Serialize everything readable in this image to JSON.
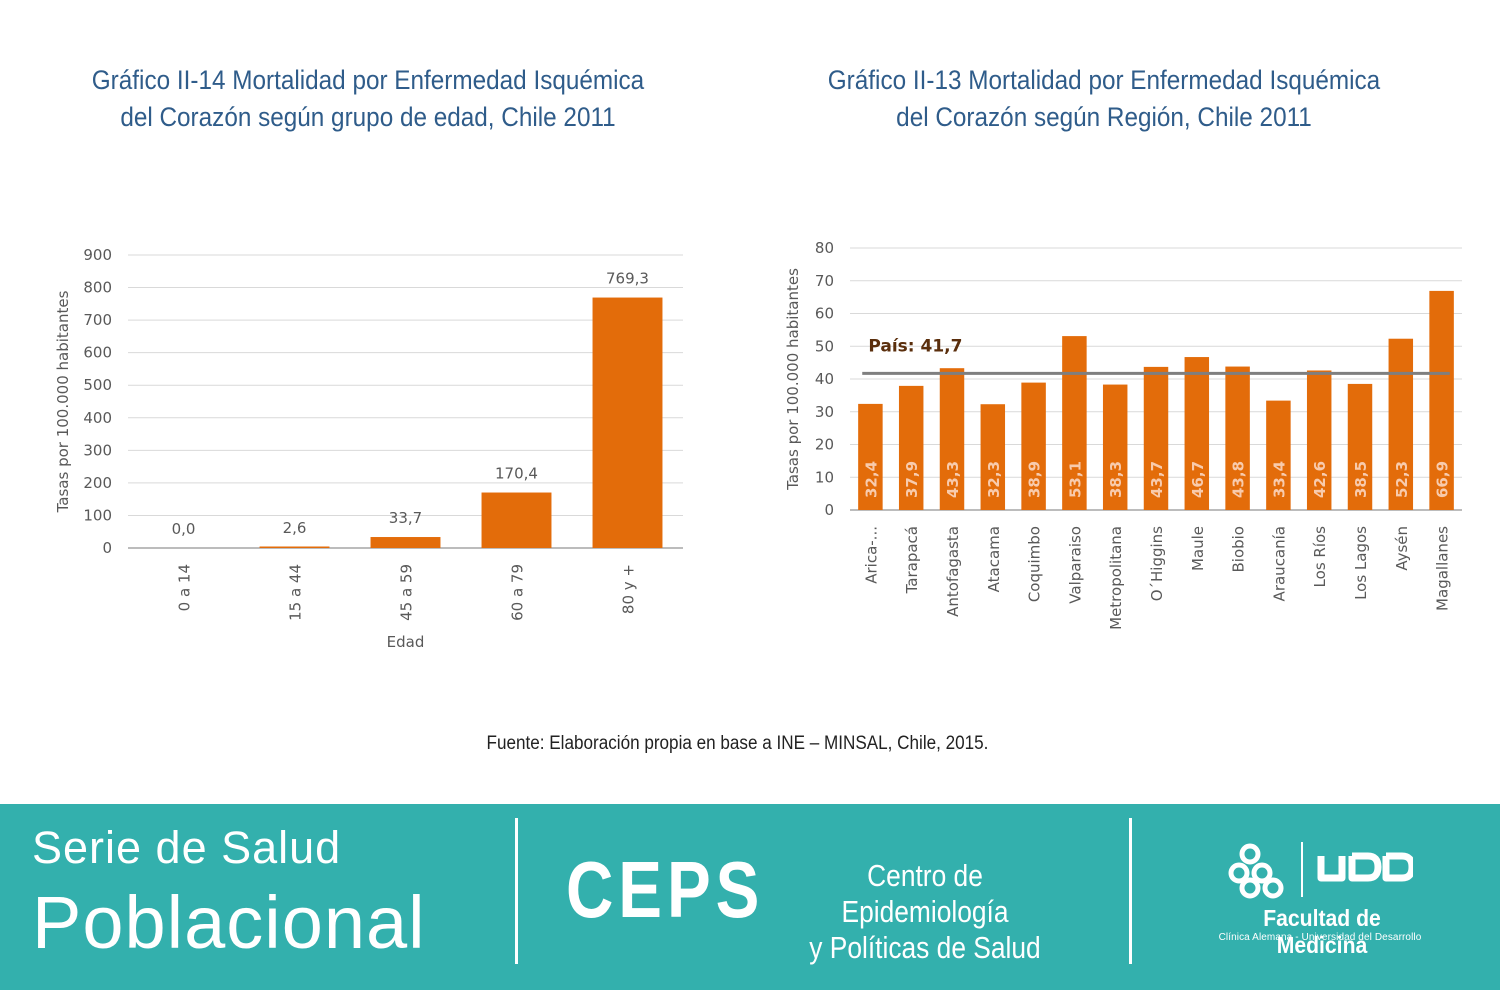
{
  "chart_data": [
    {
      "type": "bar",
      "title_lines": [
        "Gráfico II-14 Mortalidad por Enfermedad Isquémica",
        "del Corazón según grupo de edad, Chile 2011"
      ],
      "xlabel": "Edad",
      "ylabel": "Tasas por 100.000 habitantes",
      "ylim": [
        0,
        900
      ],
      "yticks": [
        0,
        100,
        200,
        300,
        400,
        500,
        600,
        700,
        800,
        900
      ],
      "grid": true,
      "categories": [
        "0 a 14",
        "15 a 44",
        "45 a 59",
        "60 a 79",
        "80 y +"
      ],
      "values": [
        0.0,
        2.6,
        33.7,
        170.4,
        769.3
      ],
      "data_labels": [
        "0,0",
        "2,6",
        "33,7",
        "170,4",
        "769,3"
      ],
      "bar_color": "#e36c0a"
    },
    {
      "type": "bar",
      "title_lines": [
        "Gráfico II-13 Mortalidad por Enfermedad Isquémica",
        "del Corazón según Región, Chile 2011"
      ],
      "xlabel": "",
      "ylabel": "Tasas por 100.000 habitantes",
      "ylim": [
        0,
        80
      ],
      "yticks": [
        0,
        10,
        20,
        30,
        40,
        50,
        60,
        70,
        80
      ],
      "grid": true,
      "categories": [
        "Arica-...",
        "Tarapacá",
        "Antofagasta",
        "Atacama",
        "Coquimbo",
        "Valparaiso",
        "Metropolitana",
        "O´Higgins",
        "Maule",
        "Biobio",
        "Araucanía",
        "Los Ríos",
        "Los Lagos",
        "Aysén",
        "Magallanes"
      ],
      "values": [
        32.4,
        37.9,
        43.3,
        32.3,
        38.9,
        53.1,
        38.3,
        43.7,
        46.7,
        43.8,
        33.4,
        42.6,
        38.5,
        52.3,
        66.9
      ],
      "data_labels": [
        "32,4",
        "37,9",
        "43,3",
        "32,3",
        "38,9",
        "53,1",
        "38,3",
        "43,7",
        "46,7",
        "43,8",
        "33,4",
        "42,6",
        "38,5",
        "52,3",
        "66,9"
      ],
      "reference_line": {
        "label": "País: 41,7",
        "value": 41.7,
        "color": "#7f7f7f"
      },
      "bar_color": "#e36c0a"
    }
  ],
  "source_note": "Fuente: Elaboración propia en base a INE – MINSAL, Chile, 2015.",
  "footer": {
    "background_color": "#33b0ad",
    "series_line1": "Serie de Salud",
    "series_line2": "Poblacional",
    "ceps_acronym": "CEPS",
    "ceps_name_line1": "Centro de Epidemiología",
    "ceps_name_line2": "y Políticas de Salud",
    "faculty_name": "Facultad de Medicina",
    "faculty_sub": "Clínica Alemana - Universidad del Desarrollo",
    "logo_text": "UDD"
  }
}
